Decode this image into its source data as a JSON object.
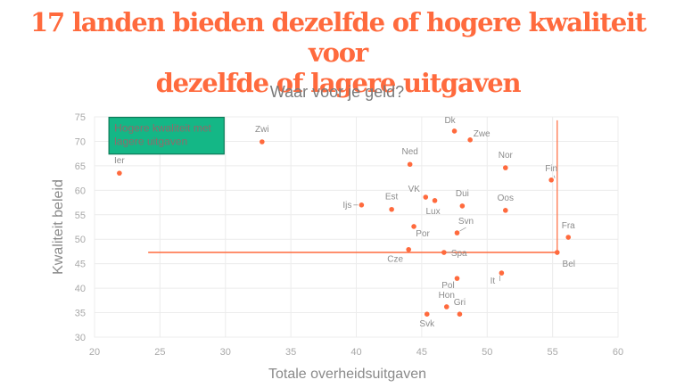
{
  "headline": {
    "line1": "17 landen bieden dezelfde of hogere kwaliteit voor",
    "line2": "dezelfde of lagere uitgaven"
  },
  "colors": {
    "accent": "#ff6a3d",
    "point": "#ff6a3d",
    "annotation_fill": "#14b786",
    "annotation_border": "#0d7a58",
    "grid": "#ececec"
  },
  "chart_data": {
    "type": "scatter",
    "title": "Waar voor je geld?",
    "xlabel": "Totale overheidsuitgaven",
    "ylabel": "Kwaliteit beleid",
    "xlim": [
      20,
      60
    ],
    "ylim": [
      30,
      75
    ],
    "xticks": [
      20,
      25,
      30,
      35,
      40,
      45,
      50,
      55,
      60
    ],
    "yticks": [
      30,
      35,
      40,
      45,
      50,
      55,
      60,
      65,
      70,
      75
    ],
    "grid": true,
    "points": [
      {
        "label": "Ier",
        "x": 21.9,
        "y": 63.5
      },
      {
        "label": "Zwi",
        "x": 32.8,
        "y": 69.9
      },
      {
        "label": "Dk",
        "x": 47.5,
        "y": 72.1
      },
      {
        "label": "Zwe",
        "x": 48.7,
        "y": 70.3
      },
      {
        "label": "Ned",
        "x": 44.1,
        "y": 65.3
      },
      {
        "label": "Nor",
        "x": 51.4,
        "y": 64.6
      },
      {
        "label": "Fin",
        "x": 54.9,
        "y": 62.1
      },
      {
        "label": "Ijs",
        "x": 40.4,
        "y": 57.0
      },
      {
        "label": "Est",
        "x": 42.7,
        "y": 56.1
      },
      {
        "label": "VK",
        "x": 45.3,
        "y": 58.6
      },
      {
        "label": "Lux",
        "x": 46.0,
        "y": 57.9
      },
      {
        "label": "Dui",
        "x": 48.1,
        "y": 56.8
      },
      {
        "label": "Oos",
        "x": 51.4,
        "y": 55.9
      },
      {
        "label": "Por",
        "x": 44.4,
        "y": 52.6
      },
      {
        "label": "Svn",
        "x": 47.7,
        "y": 51.3
      },
      {
        "label": "Fra",
        "x": 56.2,
        "y": 50.4
      },
      {
        "label": "Cze",
        "x": 44.0,
        "y": 47.9
      },
      {
        "label": "Spa",
        "x": 46.7,
        "y": 47.3
      },
      {
        "label": "Bel",
        "x": 55.35,
        "y": 47.3
      },
      {
        "label": "It",
        "x": 51.1,
        "y": 43.1
      },
      {
        "label": "Pol",
        "x": 47.7,
        "y": 42.0
      },
      {
        "label": "Hon",
        "x": 46.9,
        "y": 36.2
      },
      {
        "label": "Gri",
        "x": 47.9,
        "y": 34.7
      },
      {
        "label": "Svk",
        "x": 45.4,
        "y": 34.7
      }
    ],
    "reference_lines": [
      {
        "orientation": "horizontal",
        "y": 47.3,
        "x_from": 24.1,
        "x_to": 55.35
      },
      {
        "orientation": "vertical",
        "x": 55.35,
        "y_from": 47.3,
        "y_to": 74.3
      }
    ],
    "annotation": {
      "text_line1": "Hogere kwaliteit met",
      "text_line2": "lagere uitgaven",
      "x_from": 21.1,
      "x_to": 29.9,
      "y_from": 67.4,
      "y_to": 74.9
    }
  }
}
